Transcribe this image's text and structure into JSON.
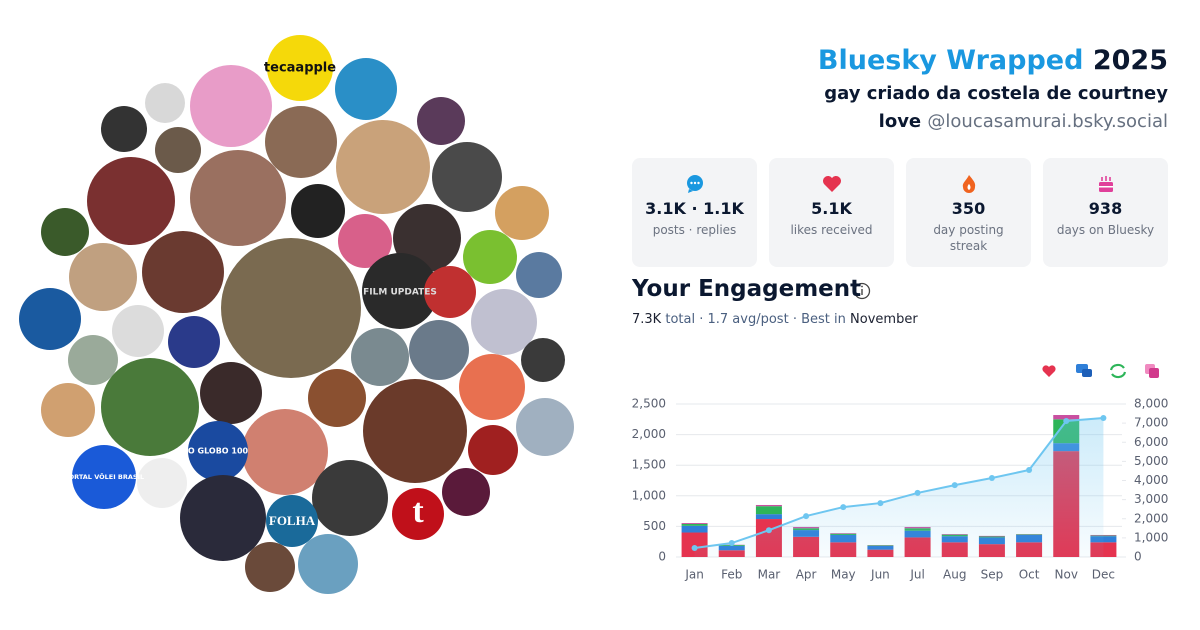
{
  "header": {
    "title": "Bluesky Wrapped",
    "year": "2025",
    "display_name": "gay criado da costela de courtney love",
    "handle": "@loucasamurai.bsky.social"
  },
  "avatar_texts": [
    "tecaapple",
    "FILM UPDATES",
    "O GLOBO 100",
    "PORTAL VÔLEI BRASIL",
    "FOLHA",
    "t"
  ],
  "stats": [
    {
      "value": "3.1K · 1.1K",
      "label": "posts · replies"
    },
    {
      "value": "5.1K",
      "label": "likes received"
    },
    {
      "value": "350",
      "label": "day posting streak"
    },
    {
      "value": "938",
      "label": "days on Bluesky"
    }
  ],
  "engagement": {
    "title": "Your Engagement",
    "total": "7.3K",
    "total_label": "total",
    "separator": "·",
    "avg": "1.7 avg/post",
    "best_label": "Best in",
    "best": "November"
  },
  "chart_data": {
    "type": "bar",
    "stacked": true,
    "grid": true,
    "categories": [
      "Jan",
      "Feb",
      "Mar",
      "Apr",
      "May",
      "Jun",
      "Jul",
      "Aug",
      "Sep",
      "Oct",
      "Nov",
      "Dec"
    ],
    "series": [
      {
        "color": "#e5334f",
        "values": [
          400,
          110,
          620,
          330,
          240,
          120,
          320,
          240,
          210,
          240,
          1730,
          240
        ]
      },
      {
        "color": "#2f7fd8",
        "values": [
          110,
          70,
          80,
          110,
          120,
          60,
          110,
          100,
          110,
          120,
          130,
          100
        ]
      },
      {
        "color": "#2db559",
        "values": [
          30,
          15,
          130,
          30,
          20,
          10,
          40,
          25,
          15,
          10,
          390,
          10
        ]
      },
      {
        "color": "#c94fa0",
        "values": [
          15,
          5,
          20,
          20,
          10,
          5,
          20,
          10,
          10,
          5,
          70,
          10
        ]
      },
      {
        "type": "line",
        "axis": "y2",
        "color": "#6ec6f0",
        "values": [
          470,
          730,
          1400,
          2140,
          2610,
          2820,
          3350,
          3760,
          4130,
          4550,
          7110,
          7270
        ]
      }
    ],
    "ylim": [
      0,
      2500
    ],
    "yticks": [
      0,
      500,
      {
        "value": 1000,
        "label": "1,000"
      },
      {
        "value": 1500,
        "label": "1,500"
      },
      {
        "value": 2000,
        "label": "2,000"
      },
      {
        "value": 2500,
        "label": "2,500"
      }
    ],
    "y2lim": [
      0,
      8000
    ],
    "y2ticks": [
      0,
      {
        "value": 1000,
        "label": "1,000"
      },
      {
        "value": 2000,
        "label": "2,000"
      },
      {
        "value": 3000,
        "label": "3,000"
      },
      {
        "value": 4000,
        "label": "4,000"
      },
      {
        "value": 5000,
        "label": "5,000"
      },
      {
        "value": 6000,
        "label": "6,000"
      },
      {
        "value": 7000,
        "label": "7,000"
      },
      {
        "value": 8000,
        "label": "8,000"
      }
    ]
  }
}
